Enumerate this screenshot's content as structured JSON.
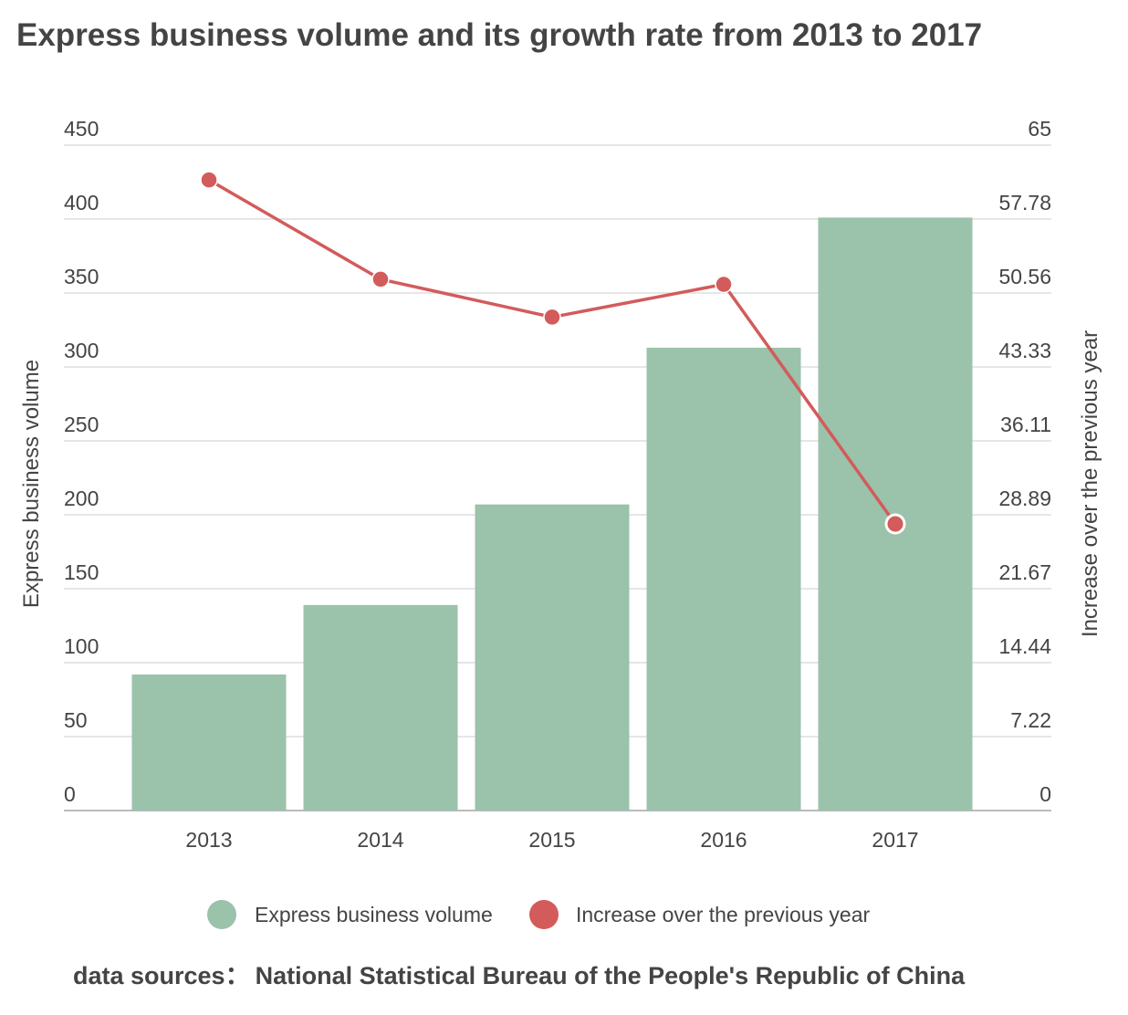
{
  "chart_data": {
    "type": "bar",
    "title": "Express business volume and its growth rate from 2013 to 2017",
    "categories": [
      "2013",
      "2014",
      "2015",
      "2016",
      "2017"
    ],
    "series": [
      {
        "name": "Express business volume",
        "type": "bar",
        "axis": "left",
        "color": "#9bc2ab",
        "values": [
          92,
          139,
          207,
          313,
          401
        ]
      },
      {
        "name": "Increase over the previous year",
        "type": "line",
        "axis": "right",
        "color": "#d35b5b",
        "values": [
          61.6,
          51.9,
          48.2,
          51.4,
          28.0
        ]
      }
    ],
    "ylabel": "Express business volume",
    "y2label": "Increase over the previous year",
    "ylim": [
      0,
      450
    ],
    "y2lim": [
      0,
      65
    ],
    "yticks": [
      "0",
      "50",
      "100",
      "150",
      "200",
      "250",
      "300",
      "350",
      "400",
      "450"
    ],
    "y2ticks": [
      "0",
      "7.22",
      "14.44",
      "21.67",
      "28.89",
      "36.11",
      "43.33",
      "50.56",
      "57.78",
      "65"
    ],
    "grid": true,
    "legend_position": "bottom",
    "source_label": "data sources：",
    "source_text": "National Statistical Bureau of the People's Republic of China"
  }
}
